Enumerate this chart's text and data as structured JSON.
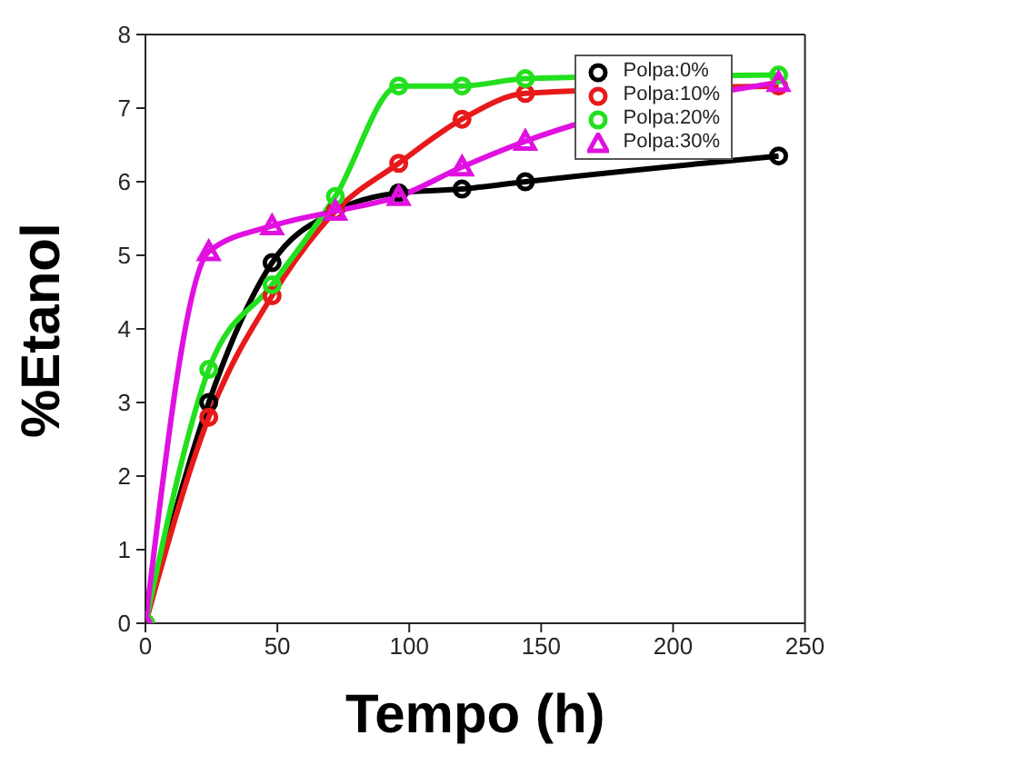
{
  "chart_data": {
    "type": "line",
    "xlabel": "Tempo (h)",
    "ylabel": "%Etanol",
    "x": [
      0,
      24,
      48,
      72,
      96,
      120,
      144,
      240
    ],
    "series": [
      {
        "name": "Polpa:0%",
        "color": "#000000",
        "marker": "circle",
        "values": [
          0,
          3.0,
          4.9,
          5.6,
          5.85,
          5.9,
          6.0,
          6.35
        ]
      },
      {
        "name": "Polpa:10%",
        "color": "#e8191a",
        "marker": "circle",
        "values": [
          0,
          2.8,
          4.45,
          5.6,
          6.25,
          6.85,
          7.2,
          7.3
        ]
      },
      {
        "name": "Polpa:20%",
        "color": "#22e01e",
        "marker": "circle",
        "values": [
          0,
          3.45,
          4.6,
          5.8,
          7.3,
          7.3,
          7.4,
          7.45
        ]
      },
      {
        "name": "Polpa:30%",
        "color": "#e010e0",
        "marker": "triangle",
        "values": [
          0,
          5.05,
          5.4,
          5.6,
          5.8,
          6.2,
          6.55,
          7.35
        ]
      }
    ],
    "xlim": [
      0,
      250
    ],
    "xticks": [
      0,
      50,
      100,
      150,
      200,
      250
    ],
    "ylim": [
      0,
      8
    ],
    "yticks": [
      0,
      1,
      2,
      3,
      4,
      5,
      6,
      7,
      8
    ],
    "legend": "top right",
    "grid": false,
    "line_style": "solid"
  }
}
